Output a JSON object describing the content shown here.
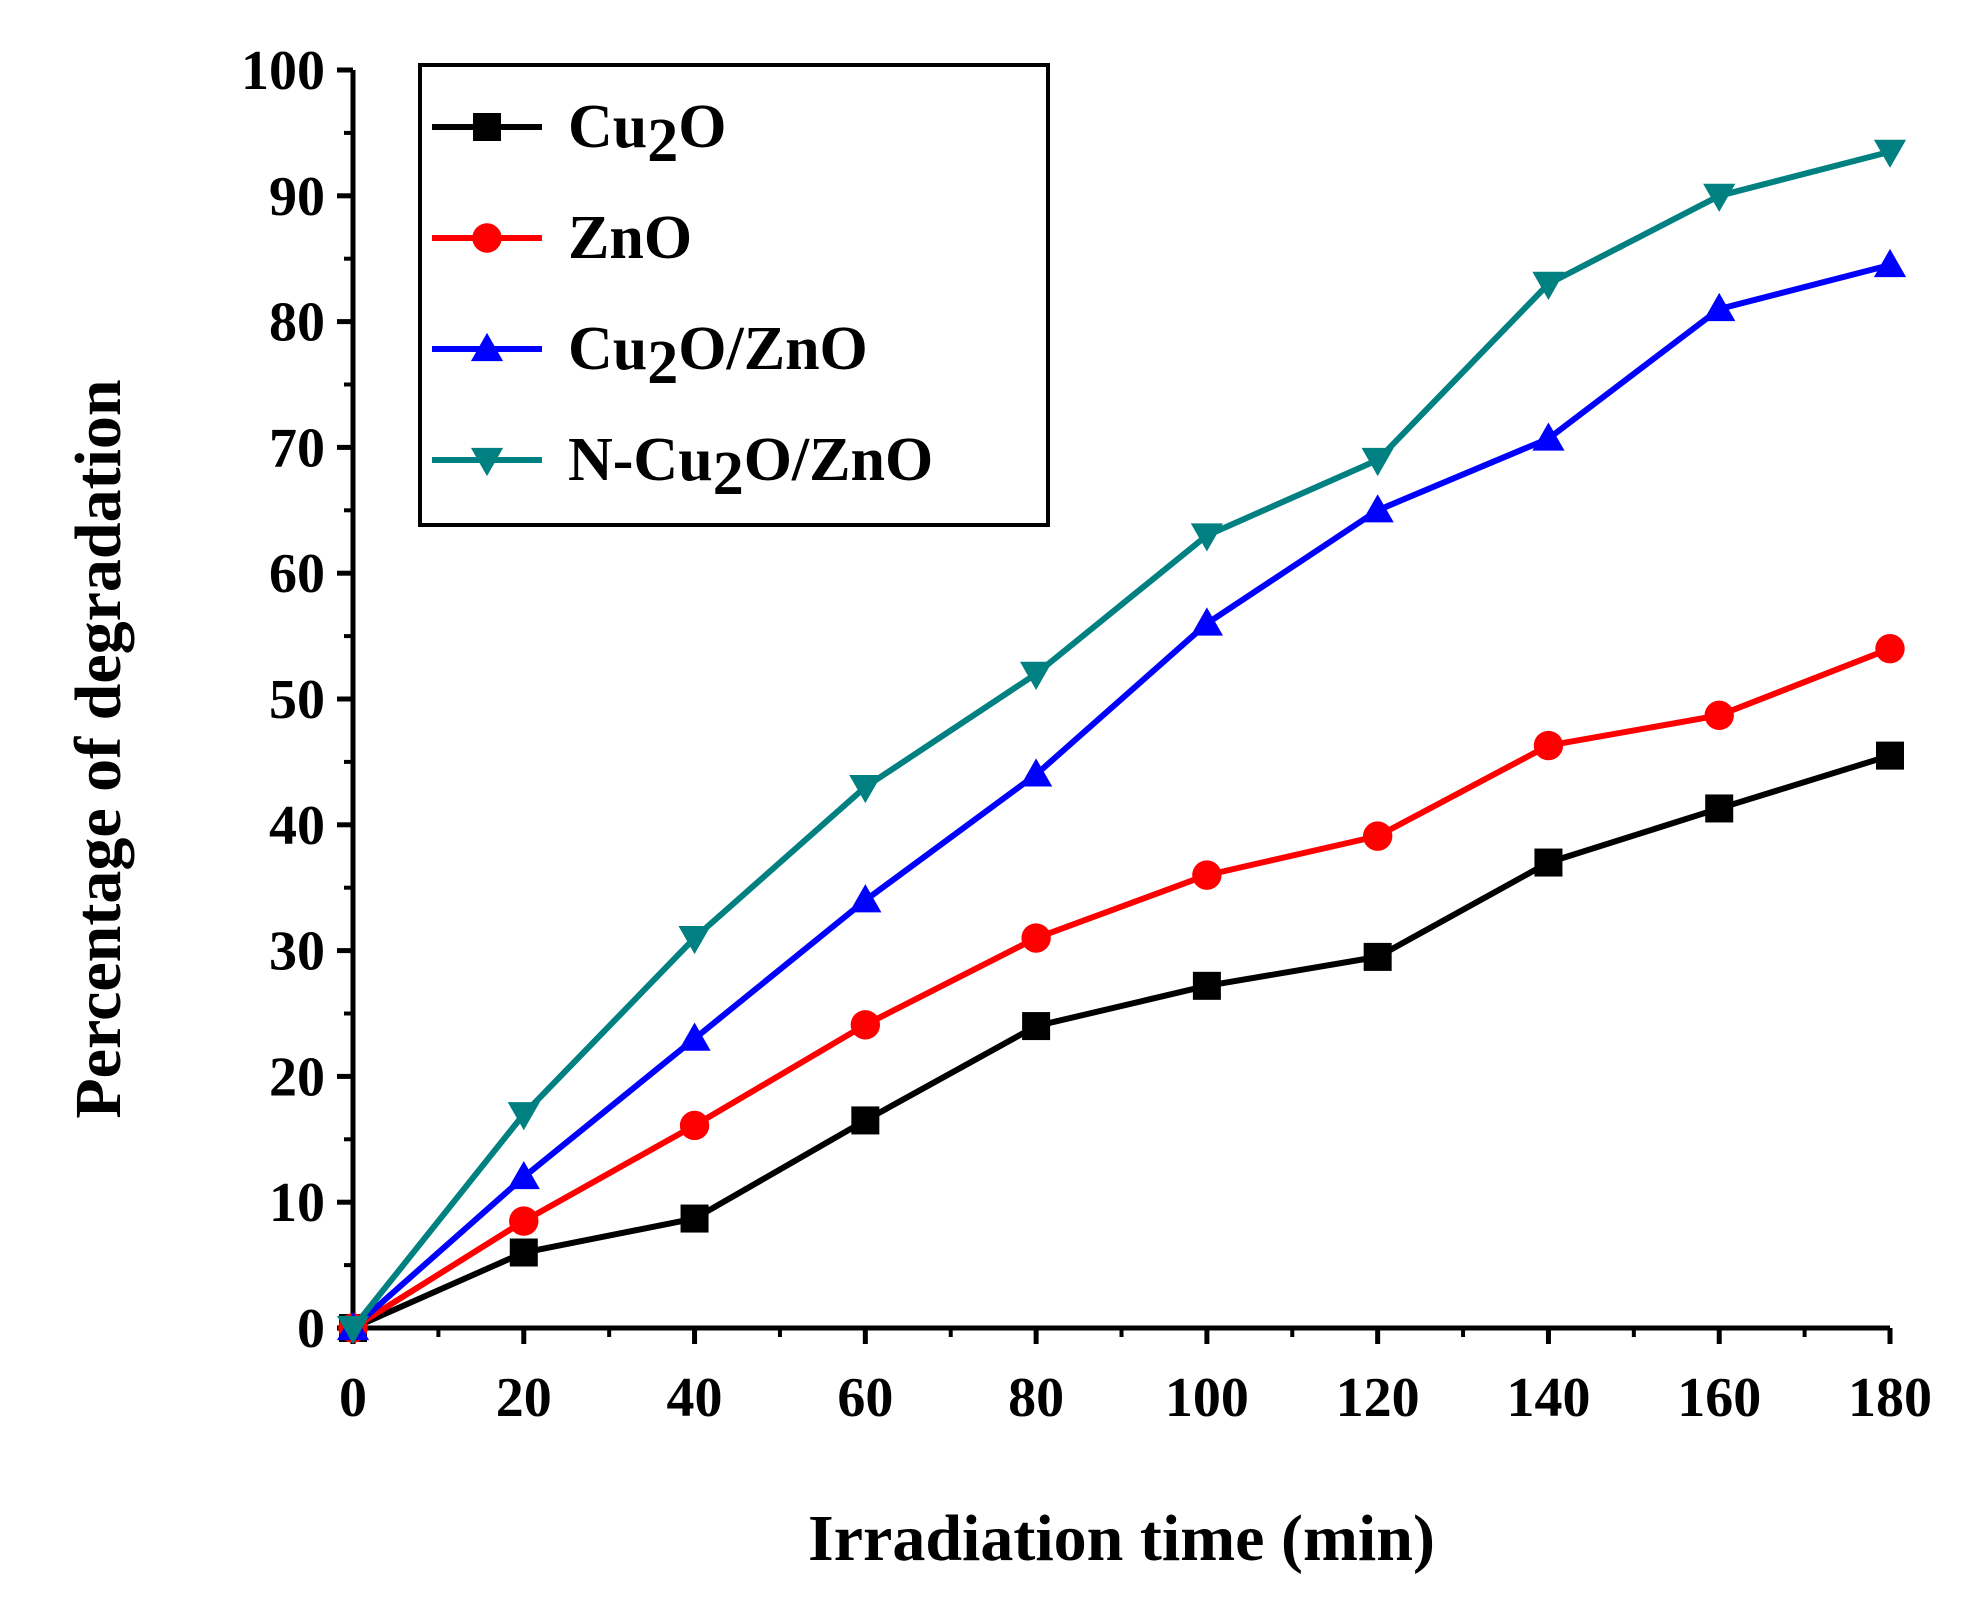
{
  "chart_data": {
    "type": "line",
    "xlabel": "Irradiation time (min)",
    "ylabel": "Percentage of degradation",
    "xlim": [
      0,
      180
    ],
    "ylim": [
      0,
      100
    ],
    "x_ticks": [
      "0",
      "20",
      "40",
      "60",
      "80",
      "100",
      "120",
      "140",
      "160",
      "180"
    ],
    "y_ticks": [
      "0",
      "10",
      "20",
      "30",
      "40",
      "50",
      "60",
      "70",
      "80",
      "90",
      "100"
    ],
    "grid": false,
    "legend_position": "top-left",
    "x": [
      0,
      20,
      40,
      60,
      80,
      100,
      120,
      140,
      160,
      180
    ],
    "series": [
      {
        "name": "Cu2O",
        "legend_main": "Cu",
        "legend_sub": "2",
        "legend_rest": "O",
        "color": "#000000",
        "marker": "square",
        "values": [
          0,
          6,
          8.7,
          16.5,
          24,
          27.2,
          29.5,
          37,
          41.3,
          45.5
        ]
      },
      {
        "name": "ZnO",
        "legend_main": "ZnO",
        "legend_sub": "",
        "legend_rest": "",
        "color": "#ff0000",
        "marker": "circle",
        "values": [
          0,
          8.5,
          16.1,
          24.1,
          31,
          36,
          39.1,
          46.3,
          48.7,
          54
        ]
      },
      {
        "name": "Cu2O/ZnO",
        "legend_main": "Cu",
        "legend_sub": "2",
        "legend_rest": "O/ZnO",
        "color": "#0000ff",
        "marker": "triangle-up",
        "values": [
          0,
          12,
          23,
          34,
          44,
          56,
          65,
          70.7,
          81,
          84.5
        ]
      },
      {
        "name": "N-Cu2O/ZnO",
        "legend_main": "N-Cu",
        "legend_sub": "2",
        "legend_rest": "O/ZnO",
        "color": "#008080",
        "marker": "triangle-down",
        "values": [
          0,
          17,
          31,
          43,
          52,
          63,
          69,
          83,
          90,
          93.5
        ]
      }
    ]
  }
}
